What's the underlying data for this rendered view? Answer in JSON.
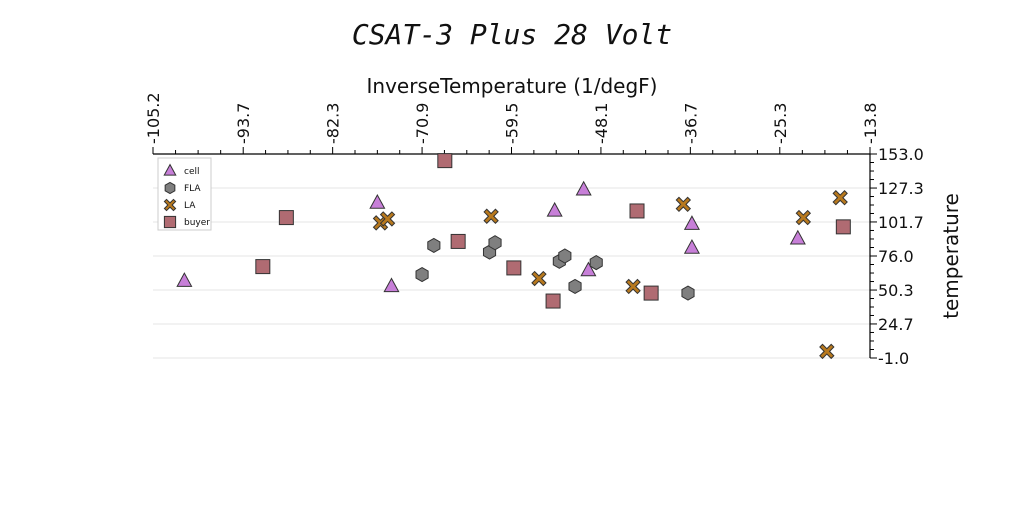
{
  "chart_data": {
    "type": "scatter",
    "title": "CSAT-3 Plus 28 Volt",
    "xlabel": "InverseTemperature (1/degF)",
    "ylabel": "temperature",
    "xlim": [
      -105.2,
      -13.8
    ],
    "ylim": [
      -1.0,
      153.0
    ],
    "x_ticks": [
      "-105.2",
      "-93.7",
      "-82.3",
      "-70.9",
      "-59.5",
      "-48.1",
      "-36.7",
      "-25.3",
      "-13.8"
    ],
    "y_ticks": [
      "153.0",
      "127.3",
      "101.7",
      "76.0",
      "50.3",
      "24.7",
      "-1.0"
    ],
    "x_axis_position": "top",
    "y_axis_position": "right",
    "grid": "horizontal",
    "legend_position": "top-left",
    "series": [
      {
        "name": "cell",
        "marker": "triangle",
        "color": "#c77fd8",
        "points": [
          [
            -101.2,
            57.0
          ],
          [
            -76.6,
            116.0
          ],
          [
            -74.8,
            53.0
          ],
          [
            -54.0,
            110.0
          ],
          [
            -50.3,
            126.0
          ],
          [
            -49.7,
            65.0
          ],
          [
            -36.5,
            100.0
          ],
          [
            -36.5,
            82.0
          ],
          [
            -23.0,
            89.0
          ]
        ]
      },
      {
        "name": "FLA",
        "marker": "hexagon",
        "color": "#7f7f7f",
        "points": [
          [
            -70.9,
            62.0
          ],
          [
            -69.4,
            84.0
          ],
          [
            -62.3,
            79.0
          ],
          [
            -61.6,
            86.0
          ],
          [
            -53.4,
            72.0
          ],
          [
            -52.7,
            76.0
          ],
          [
            -51.4,
            53.0
          ],
          [
            -48.7,
            71.0
          ],
          [
            -37.0,
            48.0
          ]
        ]
      },
      {
        "name": "LA",
        "marker": "x",
        "color": "#b8791e",
        "points": [
          [
            -76.2,
            101.0
          ],
          [
            -75.3,
            104.0
          ],
          [
            -62.1,
            106.0
          ],
          [
            -56.0,
            59.0
          ],
          [
            -44.0,
            53.0
          ],
          [
            -37.6,
            115.0
          ],
          [
            -22.3,
            105.0
          ],
          [
            -19.3,
            4.0
          ],
          [
            -17.6,
            120.0
          ]
        ]
      },
      {
        "name": "buyer",
        "marker": "square",
        "color": "#b06b72",
        "points": [
          [
            -68.0,
            148.0
          ],
          [
            -66.3,
            87.0
          ],
          [
            -91.2,
            68.0
          ],
          [
            -88.2,
            105.0
          ],
          [
            -59.2,
            67.0
          ],
          [
            -54.2,
            42.0
          ],
          [
            -43.5,
            110.0
          ],
          [
            -41.7,
            48.0
          ],
          [
            -17.2,
            98.0
          ]
        ]
      }
    ]
  }
}
